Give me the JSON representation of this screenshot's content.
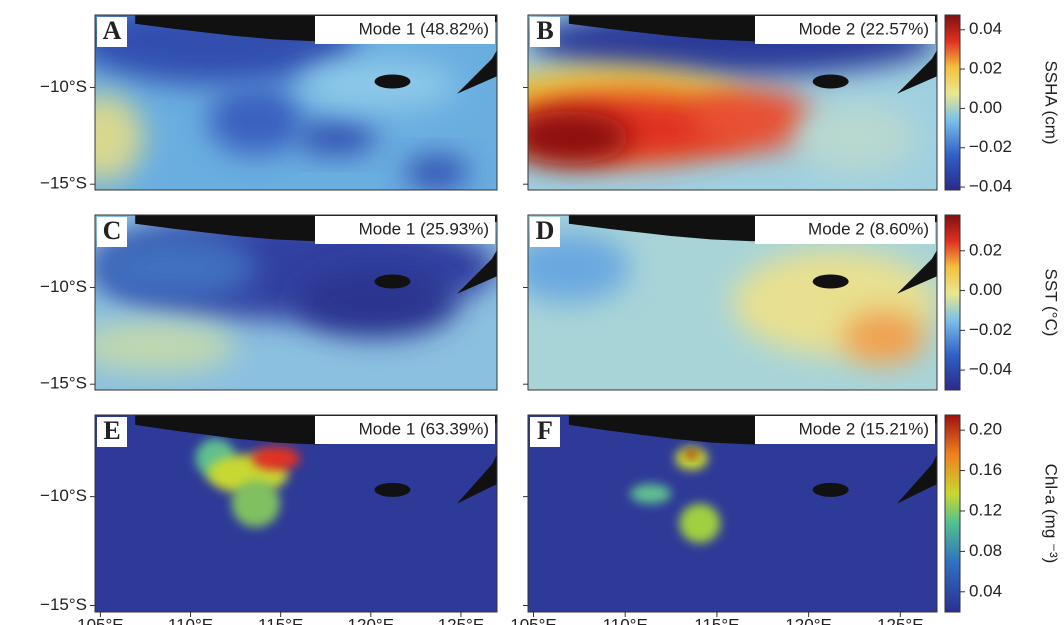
{
  "panels": [
    {
      "letter": "A",
      "title": "Mode 1 (48.82%)"
    },
    {
      "letter": "B",
      "title": "Mode 2 (22.57%)"
    },
    {
      "letter": "C",
      "title": "Mode 1 (25.93%)"
    },
    {
      "letter": "D",
      "title": "Mode 2 (8.60%)"
    },
    {
      "letter": "E",
      "title": "Mode 1 (63.39%)"
    },
    {
      "letter": "F",
      "title": "Mode 2 (15.21%)"
    }
  ],
  "colorbars": [
    {
      "label": "SSHA (cm)",
      "lim": [
        -0.0415,
        0.0475
      ],
      "ticks": [
        {
          "value": 0.04,
          "label": "0.04"
        },
        {
          "value": 0.02,
          "label": "0.02"
        },
        {
          "value": 0,
          "label": "0.00"
        },
        {
          "value": -0.02,
          "label": "−0.02"
        },
        {
          "value": -0.04,
          "label": "−0.04"
        }
      ]
    },
    {
      "label": "SST (°C)",
      "lim": [
        -0.05,
        0.038
      ],
      "ticks": [
        {
          "value": 0.02,
          "label": "0.02"
        },
        {
          "value": 0,
          "label": "0.00"
        },
        {
          "value": -0.02,
          "label": "−0.02"
        },
        {
          "value": -0.04,
          "label": "−0.04"
        }
      ]
    },
    {
      "label": "Chl-a (mg ⁻³)",
      "lim": [
        0.02,
        0.215
      ],
      "ticks": [
        {
          "value": 0.2,
          "label": "0.20"
        },
        {
          "value": 0.16,
          "label": "0.16"
        },
        {
          "value": 0.12,
          "label": "0.12"
        },
        {
          "value": 0.08,
          "label": "0.08"
        },
        {
          "value": 0.04,
          "label": "0.04"
        }
      ]
    }
  ],
  "lat_axis": {
    "lim": [
      -6.25,
      -15.3
    ],
    "ticks": [
      {
        "value": -10,
        "label": "−10°S"
      },
      {
        "value": -15,
        "label": "−15°S"
      }
    ]
  },
  "lon_axis": {
    "lim": [
      104.7,
      127
    ],
    "ticks": [
      {
        "value": 105,
        "label": "105°E"
      },
      {
        "value": 110,
        "label": "110°E"
      },
      {
        "value": 115,
        "label": "115°E"
      },
      {
        "value": 120,
        "label": "120°E"
      },
      {
        "value": 125,
        "label": "125°E"
      }
    ]
  }
}
